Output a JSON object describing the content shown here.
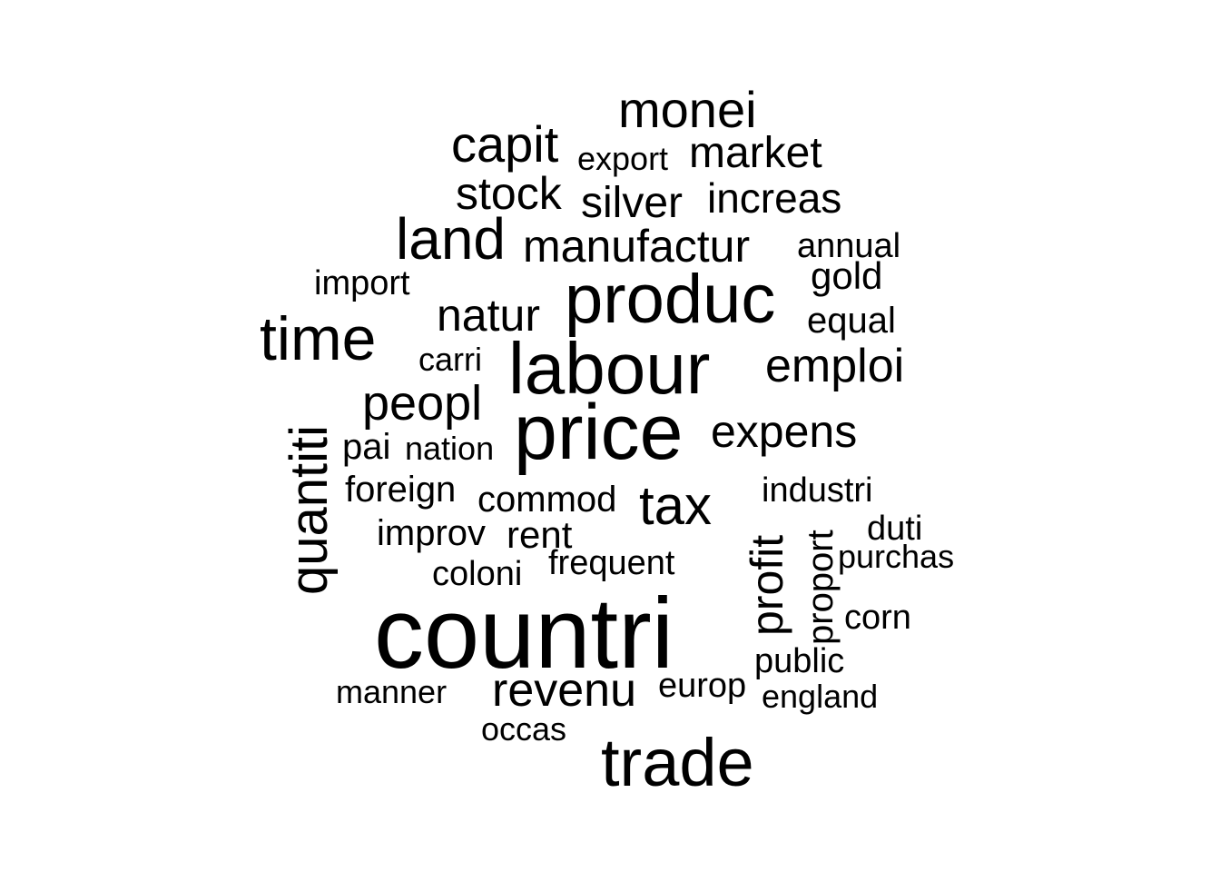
{
  "chart_data": {
    "type": "wordcloud",
    "color": "#000000",
    "background": "#ffffff",
    "words": [
      {
        "text": "countri",
        "rotated": false
      },
      {
        "text": "price",
        "rotated": false
      },
      {
        "text": "labour",
        "rotated": false
      },
      {
        "text": "produc",
        "rotated": false
      },
      {
        "text": "trade",
        "rotated": false
      },
      {
        "text": "time",
        "rotated": false
      },
      {
        "text": "land",
        "rotated": false
      },
      {
        "text": "quantiti",
        "rotated": true
      },
      {
        "text": "tax",
        "rotated": false
      },
      {
        "text": "profit",
        "rotated": true
      },
      {
        "text": "capit",
        "rotated": false
      },
      {
        "text": "monei",
        "rotated": false
      },
      {
        "text": "peopl",
        "rotated": false
      },
      {
        "text": "revenu",
        "rotated": false
      },
      {
        "text": "natur",
        "rotated": false
      },
      {
        "text": "emploi",
        "rotated": false
      },
      {
        "text": "expens",
        "rotated": false
      },
      {
        "text": "manufactur",
        "rotated": false
      },
      {
        "text": "stock",
        "rotated": false
      },
      {
        "text": "silver",
        "rotated": false
      },
      {
        "text": "market",
        "rotated": false
      },
      {
        "text": "increas",
        "rotated": false
      },
      {
        "text": "proport",
        "rotated": true
      },
      {
        "text": "rent",
        "rotated": false
      },
      {
        "text": "gold",
        "rotated": false
      },
      {
        "text": "improv",
        "rotated": false
      },
      {
        "text": "commod",
        "rotated": false
      },
      {
        "text": "foreign",
        "rotated": false
      },
      {
        "text": "equal",
        "rotated": false
      },
      {
        "text": "industri",
        "rotated": false
      },
      {
        "text": "pai",
        "rotated": false
      },
      {
        "text": "corn",
        "rotated": false
      },
      {
        "text": "import",
        "rotated": false
      },
      {
        "text": "annual",
        "rotated": false
      },
      {
        "text": "coloni",
        "rotated": false
      },
      {
        "text": "frequent",
        "rotated": false
      },
      {
        "text": "nation",
        "rotated": false
      },
      {
        "text": "purchas",
        "rotated": false
      },
      {
        "text": "duti",
        "rotated": false
      },
      {
        "text": "public",
        "rotated": false
      },
      {
        "text": "europ",
        "rotated": false
      },
      {
        "text": "england",
        "rotated": false
      },
      {
        "text": "export",
        "rotated": false
      },
      {
        "text": "carri",
        "rotated": false
      },
      {
        "text": "manner",
        "rotated": false
      },
      {
        "text": "occas",
        "rotated": false
      }
    ]
  }
}
